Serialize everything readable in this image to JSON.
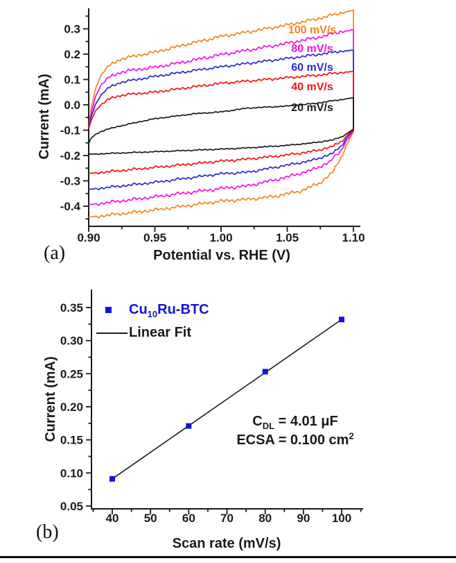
{
  "panel_a": {
    "label": "(a)",
    "xlabel": "Potential vs. RHE (V)",
    "ylabel": "Current (mA)",
    "curve_labels": [
      {
        "text": "100 mV/s",
        "color": "#F8821E"
      },
      {
        "text": "80 mV/s",
        "color": "#FB0DE0"
      },
      {
        "text": "60 mV/s",
        "color": "#2828CD"
      },
      {
        "text": "40 mV/s",
        "color": "#FB0F0F"
      },
      {
        "text": "20 mV/s",
        "color": "#1A1A1A"
      }
    ]
  },
  "panel_b": {
    "label": "(b)",
    "xlabel": "Scan rate (mV/s)",
    "ylabel": "Current (mA)",
    "legend": {
      "series1_prefix": "Cu",
      "series1_sub": "10",
      "series1_suffix": "Ru-BTC",
      "series1_color": "#1313DE",
      "series2": "Linear Fit",
      "series2_color": "#1A1A1A"
    },
    "annotation": {
      "line1_main": "C",
      "line1_sub": "DL",
      "line1_rest": " = 4.01 μF",
      "line2_main": "ECSA = 0.100 cm",
      "line2_sup": "2"
    }
  },
  "chart_data": [
    {
      "type": "line",
      "panel": "a",
      "title": "",
      "xlabel": "Potential vs. RHE (V)",
      "ylabel": "Current (mA)",
      "xlim": [
        0.9,
        1.105
      ],
      "ylim": [
        -0.48,
        0.378
      ],
      "grid": false,
      "legend_position": "inside-right-stacked",
      "x_major_ticks": [
        0.9,
        0.95,
        1.0,
        1.05,
        1.1
      ],
      "x_tick_labels": [
        "0.90",
        "0.95",
        "1.00",
        "1.05",
        "1.10"
      ],
      "x_minor_ticks": [
        0.925,
        0.975,
        1.025,
        1.075
      ],
      "y_major_ticks": [
        0.3,
        0.2,
        0.1,
        0.0,
        -0.1,
        -0.2,
        -0.3,
        -0.4
      ],
      "y_tick_labels": [
        "0.3",
        "0.2",
        "0.1",
        "0.0",
        "-0.1",
        "-0.2",
        "-0.3",
        "-0.4"
      ],
      "y_minor_ticks": [
        0.35,
        0.25,
        0.15,
        0.05,
        -0.05,
        -0.15,
        -0.25,
        -0.35,
        -0.45
      ],
      "series": [
        {
          "name": "100 mV/s",
          "color": "#F8821E",
          "noise": 0.0045,
          "forward": [
            [
              0.9,
              -0.09
            ],
            [
              0.902,
              -0.01
            ],
            [
              0.905,
              0.06
            ],
            [
              0.908,
              0.105
            ],
            [
              0.912,
              0.138
            ],
            [
              0.918,
              0.163
            ],
            [
              0.925,
              0.182
            ],
            [
              0.94,
              0.198
            ],
            [
              0.95,
              0.208
            ],
            [
              0.975,
              0.24
            ],
            [
              1.0,
              0.27
            ],
            [
              1.025,
              0.292
            ],
            [
              1.05,
              0.315
            ],
            [
              1.075,
              0.342
            ],
            [
              1.09,
              0.362
            ],
            [
              1.1,
              0.373
            ]
          ],
          "reverse": [
            [
              0.9,
              -0.444
            ],
            [
              0.95,
              -0.415
            ],
            [
              1.0,
              -0.38
            ],
            [
              1.02,
              -0.373
            ],
            [
              1.04,
              -0.362
            ],
            [
              1.06,
              -0.34
            ],
            [
              1.075,
              -0.308
            ],
            [
              1.085,
              -0.262
            ],
            [
              1.091,
              -0.205
            ],
            [
              1.096,
              -0.145
            ],
            [
              1.1,
              -0.107
            ]
          ]
        },
        {
          "name": "80 mV/s",
          "color": "#FB0DE0",
          "noise": 0.0045,
          "forward": [
            [
              0.9,
              -0.092
            ],
            [
              0.902,
              -0.03
            ],
            [
              0.905,
              0.03
            ],
            [
              0.908,
              0.068
            ],
            [
              0.912,
              0.095
            ],
            [
              0.918,
              0.115
            ],
            [
              0.925,
              0.13
            ],
            [
              0.94,
              0.142
            ],
            [
              0.95,
              0.148
            ],
            [
              0.975,
              0.172
            ],
            [
              1.0,
              0.198
            ],
            [
              1.025,
              0.22
            ],
            [
              1.05,
              0.243
            ],
            [
              1.075,
              0.268
            ],
            [
              1.09,
              0.288
            ],
            [
              1.1,
              0.296
            ]
          ],
          "reverse": [
            [
              0.9,
              -0.395
            ],
            [
              0.95,
              -0.363
            ],
            [
              1.0,
              -0.33
            ],
            [
              1.02,
              -0.32
            ],
            [
              1.05,
              -0.285
            ],
            [
              1.07,
              -0.255
            ],
            [
              1.082,
              -0.225
            ],
            [
              1.09,
              -0.185
            ],
            [
              1.095,
              -0.14
            ],
            [
              1.1,
              -0.103
            ]
          ]
        },
        {
          "name": "60 mV/s",
          "color": "#2828CD",
          "noise": 0.0035,
          "forward": [
            [
              0.9,
              -0.093
            ],
            [
              0.902,
              -0.045
            ],
            [
              0.905,
              0.0
            ],
            [
              0.908,
              0.03
            ],
            [
              0.912,
              0.055
            ],
            [
              0.918,
              0.075
            ],
            [
              0.925,
              0.09
            ],
            [
              0.94,
              0.103
            ],
            [
              0.95,
              0.112
            ],
            [
              0.975,
              0.132
            ],
            [
              1.0,
              0.15
            ],
            [
              1.025,
              0.167
            ],
            [
              1.05,
              0.183
            ],
            [
              1.075,
              0.2
            ],
            [
              1.09,
              0.211
            ],
            [
              1.1,
              0.216
            ]
          ],
          "reverse": [
            [
              0.9,
              -0.334
            ],
            [
              0.95,
              -0.306
            ],
            [
              1.0,
              -0.272
            ],
            [
              1.02,
              -0.266
            ],
            [
              1.05,
              -0.238
            ],
            [
              1.07,
              -0.218
            ],
            [
              1.085,
              -0.19
            ],
            [
              1.092,
              -0.155
            ],
            [
              1.096,
              -0.122
            ],
            [
              1.1,
              -0.1
            ]
          ]
        },
        {
          "name": "40 mV/s",
          "color": "#FB0F0F",
          "noise": 0.0035,
          "forward": [
            [
              0.9,
              -0.095
            ],
            [
              0.902,
              -0.06
            ],
            [
              0.905,
              -0.025
            ],
            [
              0.908,
              -0.005
            ],
            [
              0.912,
              0.012
            ],
            [
              0.918,
              0.028
            ],
            [
              0.925,
              0.038
            ],
            [
              0.94,
              0.046
            ],
            [
              0.95,
              0.05
            ],
            [
              0.975,
              0.068
            ],
            [
              1.0,
              0.085
            ],
            [
              1.025,
              0.096
            ],
            [
              1.05,
              0.107
            ],
            [
              1.075,
              0.118
            ],
            [
              1.09,
              0.127
            ],
            [
              1.1,
              0.132
            ]
          ],
          "reverse": [
            [
              0.9,
              -0.271
            ],
            [
              0.95,
              -0.247
            ],
            [
              1.0,
              -0.222
            ],
            [
              1.02,
              -0.214
            ],
            [
              1.05,
              -0.198
            ],
            [
              1.07,
              -0.183
            ],
            [
              1.085,
              -0.163
            ],
            [
              1.092,
              -0.14
            ],
            [
              1.096,
              -0.116
            ],
            [
              1.1,
              -0.098
            ]
          ]
        },
        {
          "name": "20 mV/s",
          "color": "#1A1A1A",
          "noise": 0.0015,
          "forward": [
            [
              0.9,
              -0.152
            ],
            [
              0.902,
              -0.13
            ],
            [
              0.905,
              -0.117
            ],
            [
              0.91,
              -0.104
            ],
            [
              0.92,
              -0.088
            ],
            [
              0.94,
              -0.065
            ],
            [
              0.95,
              -0.055
            ],
            [
              0.98,
              -0.035
            ],
            [
              1.0,
              -0.028
            ],
            [
              1.02,
              -0.013
            ],
            [
              1.05,
              -0.005
            ],
            [
              1.07,
              0.005
            ],
            [
              1.09,
              0.02
            ],
            [
              1.1,
              0.028
            ]
          ],
          "reverse": [
            [
              0.9,
              -0.195
            ],
            [
              0.95,
              -0.185
            ],
            [
              1.0,
              -0.175
            ],
            [
              1.02,
              -0.17
            ],
            [
              1.05,
              -0.16
            ],
            [
              1.07,
              -0.15
            ],
            [
              1.085,
              -0.138
            ],
            [
              1.092,
              -0.124
            ],
            [
              1.096,
              -0.11
            ],
            [
              1.1,
              -0.096
            ]
          ]
        }
      ]
    },
    {
      "type": "scatter",
      "panel": "b",
      "title": "",
      "xlabel": "Scan rate (mV/s)",
      "ylabel": "Current (mA)",
      "xlim": [
        34.5,
        105.5
      ],
      "ylim": [
        0.045,
        0.377
      ],
      "grid": false,
      "legend_position": "upper-left-inside",
      "x": [
        40,
        60,
        80,
        100
      ],
      "y": [
        0.091,
        0.171,
        0.253,
        0.332
      ],
      "series_name": "Cu10Ru-BTC",
      "fit_line": {
        "name": "Linear Fit",
        "x": [
          40,
          100
        ],
        "y": [
          0.091,
          0.332
        ]
      },
      "marker_color": "#1313DE",
      "line_color": "#1A1A1A",
      "x_major_ticks": [
        40,
        50,
        60,
        70,
        80,
        90,
        100
      ],
      "x_tick_labels": [
        "40",
        "50",
        "60",
        "70",
        "80",
        "90",
        "100"
      ],
      "x_minor_ticks": [
        35,
        45,
        55,
        65,
        75,
        85,
        95,
        105
      ],
      "y_major_ticks": [
        0.35,
        0.3,
        0.25,
        0.2,
        0.15,
        0.1,
        0.05
      ],
      "y_tick_labels": [
        "0.35",
        "0.30",
        "0.25",
        "0.20",
        "0.15",
        "0.10",
        "0.05"
      ],
      "y_minor_ticks": [
        0.325,
        0.275,
        0.225,
        0.175,
        0.125,
        0.075
      ]
    }
  ]
}
